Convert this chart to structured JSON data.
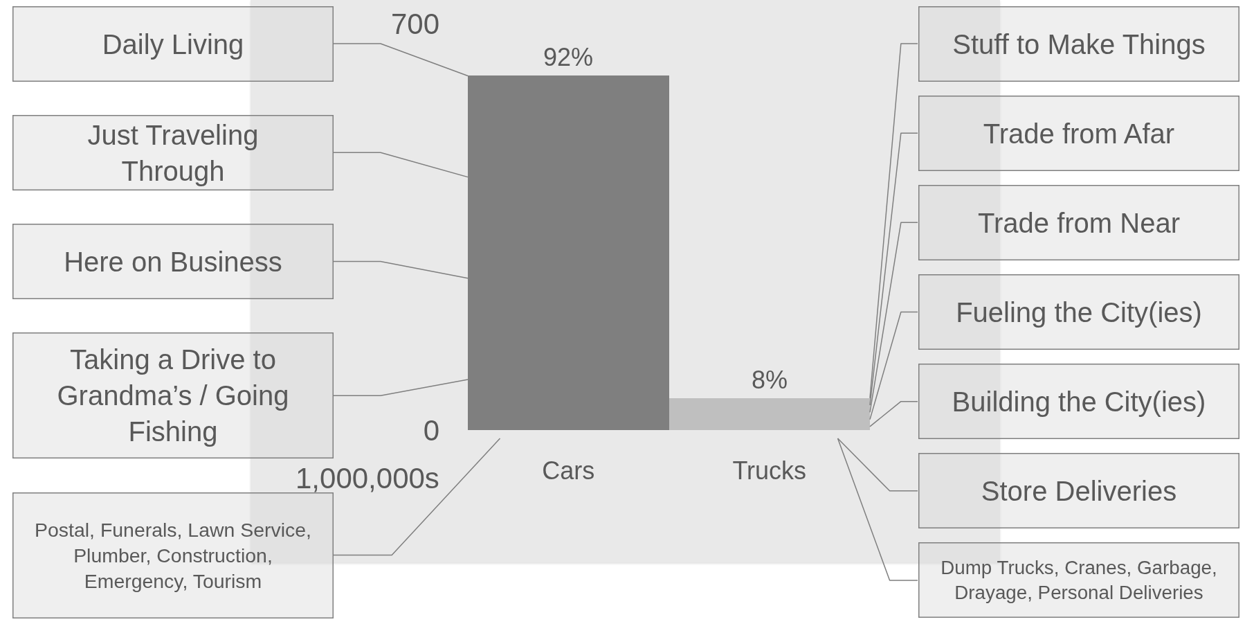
{
  "chart_data": {
    "type": "bar",
    "categories": [
      "Cars",
      "Trucks"
    ],
    "values": [
      610,
      55
    ],
    "colors": [
      "#7f7f7f",
      "#bfbfbf"
    ],
    "ylabel": "1,000,000s",
    "ylim": [
      0,
      700
    ],
    "yticks": [
      0,
      700
    ],
    "annotations": [
      {
        "text": "92%",
        "x": "Cars",
        "y": 610
      },
      {
        "text": "8%",
        "x": "Trucks",
        "y": 55
      },
      "Daily Living",
      "Just Traveling\nThrough",
      "Here on Business",
      "Taking a Drive to\nGrandma’s / Going\nFishing",
      "Postal, Funerals, Lawn Service,\nPlumber, Construction,\nEmergency, Tourism",
      "Stuff to Make Things",
      "Trade from Afar",
      "Trade from Near",
      "Fueling the City(ies)",
      "Building the City(ies)",
      "Store Deliveries",
      "Dump Trucks, Cranes, Garbage,\nDrayage, Personal Deliveries"
    ]
  }
}
